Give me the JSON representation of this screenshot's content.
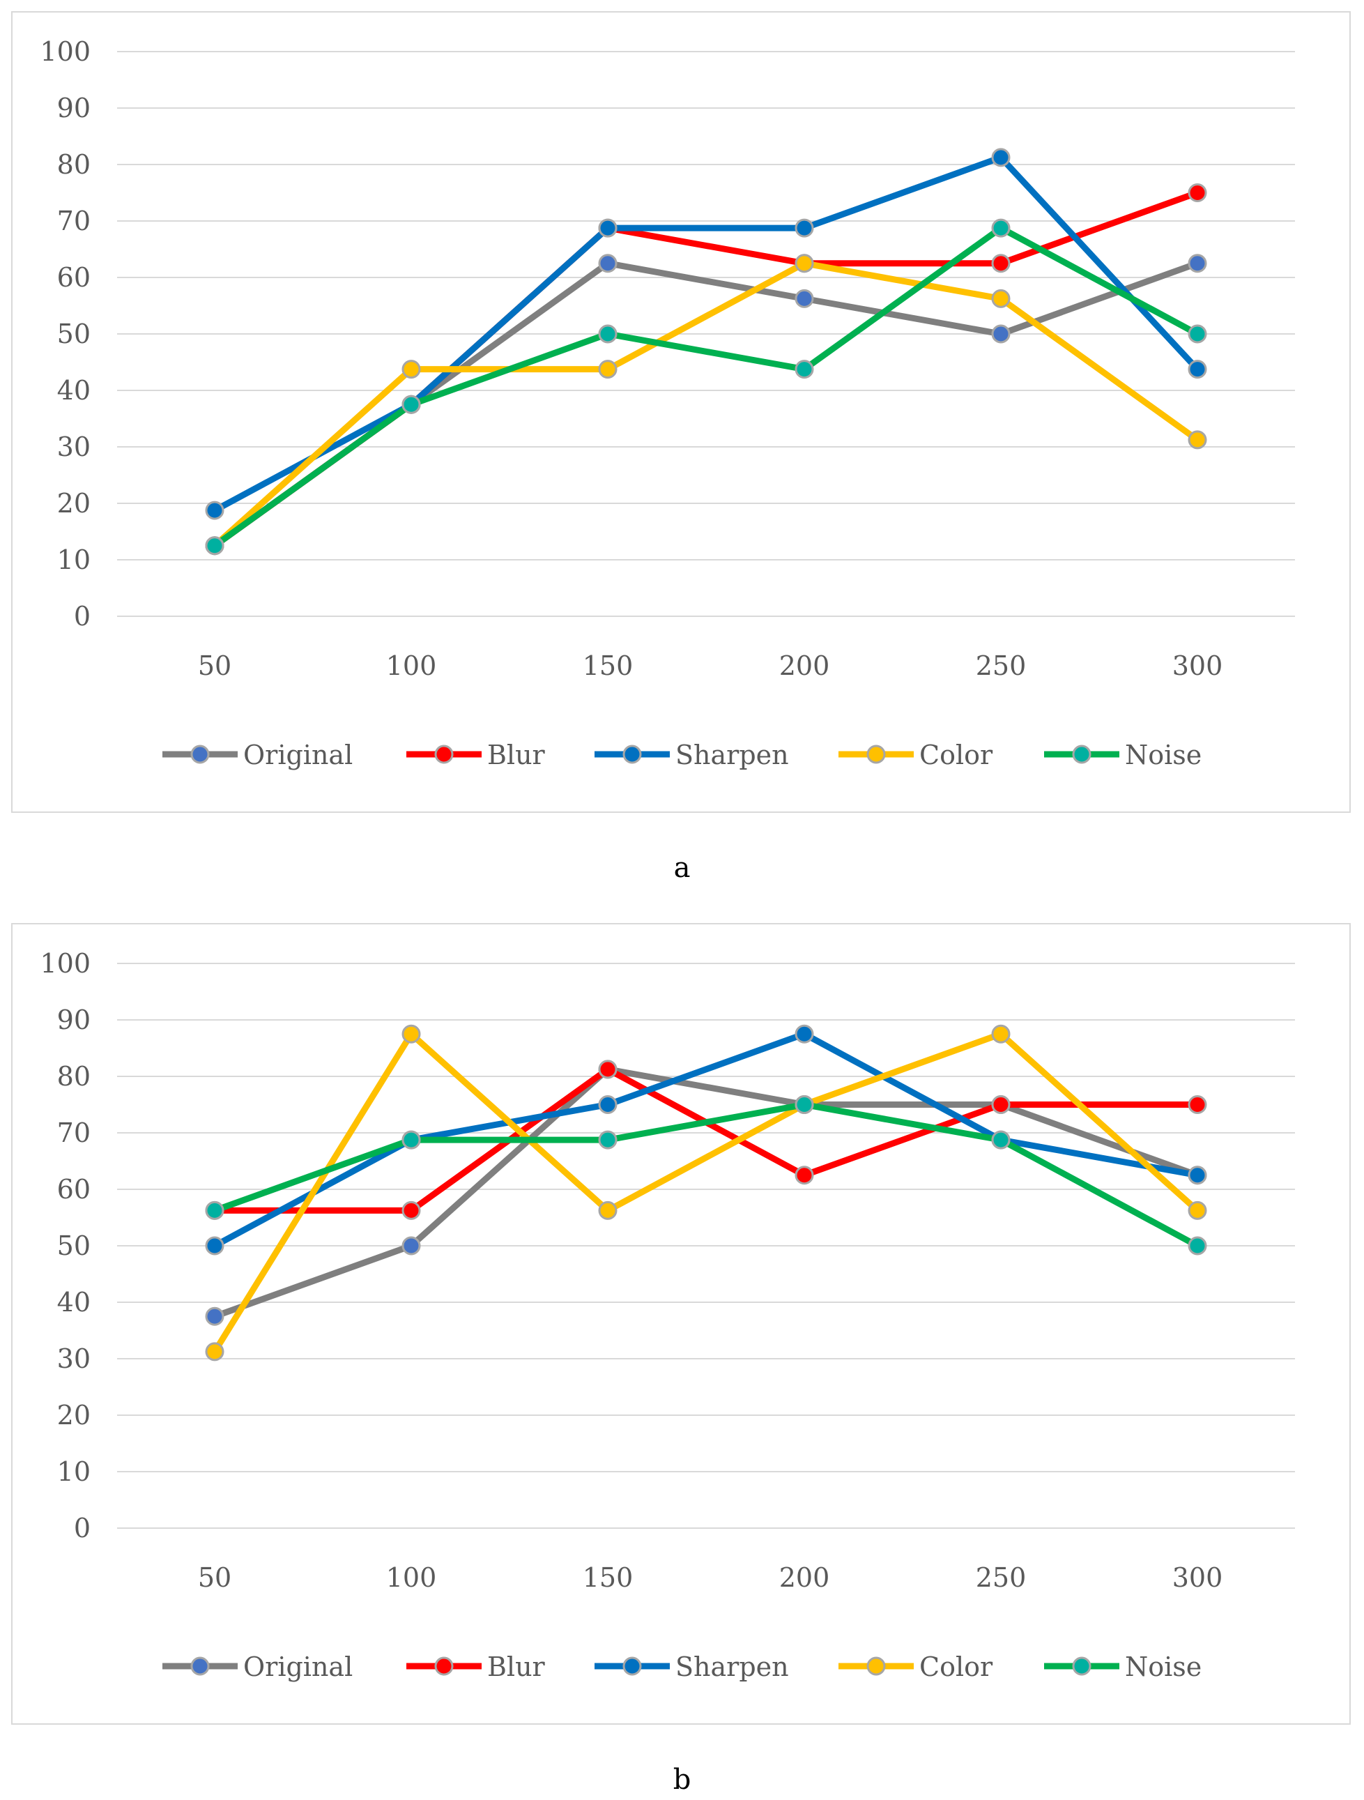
{
  "chart_data": [
    {
      "type": "line",
      "title": "",
      "xlabel": "",
      "ylabel": "",
      "categories": [
        "50",
        "100",
        "150",
        "200",
        "250",
        "300"
      ],
      "ylim": [
        0,
        100
      ],
      "yticks": [
        0,
        10,
        20,
        30,
        40,
        50,
        60,
        70,
        80,
        90,
        100
      ],
      "grid": true,
      "legend_position": "bottom",
      "caption": "a",
      "series": [
        {
          "name": "Original",
          "color": "#7f7f7f",
          "marker_color": "#4472c4",
          "values": [
            12.5,
            37.5,
            62.5,
            56.25,
            50,
            62.5
          ]
        },
        {
          "name": "Blur",
          "color": "#ff0000",
          "marker_color": "#ff0000",
          "values": [
            12.5,
            37.5,
            68.75,
            62.5,
            62.5,
            75
          ]
        },
        {
          "name": "Sharpen",
          "color": "#0070c0",
          "marker_color": "#0070c0",
          "values": [
            18.75,
            37.5,
            68.75,
            68.75,
            81.25,
            43.75
          ]
        },
        {
          "name": "Color",
          "color": "#ffc000",
          "marker_color": "#ffc000",
          "values": [
            12.5,
            43.75,
            43.75,
            62.5,
            56.25,
            31.25
          ]
        },
        {
          "name": "Noise",
          "color": "#00b050",
          "marker_color": "#00b0a0",
          "values": [
            12.5,
            37.5,
            50,
            43.75,
            68.75,
            50
          ]
        }
      ]
    },
    {
      "type": "line",
      "title": "",
      "xlabel": "",
      "ylabel": "",
      "categories": [
        "50",
        "100",
        "150",
        "200",
        "250",
        "300"
      ],
      "ylim": [
        0,
        100
      ],
      "yticks": [
        0,
        10,
        20,
        30,
        40,
        50,
        60,
        70,
        80,
        90,
        100
      ],
      "grid": true,
      "legend_position": "bottom",
      "caption": "b",
      "series": [
        {
          "name": "Original",
          "color": "#7f7f7f",
          "marker_color": "#4472c4",
          "values": [
            37.5,
            50,
            81.25,
            75,
            75,
            62.5
          ]
        },
        {
          "name": "Blur",
          "color": "#ff0000",
          "marker_color": "#ff0000",
          "values": [
            56.25,
            56.25,
            81.25,
            62.5,
            75,
            75
          ]
        },
        {
          "name": "Sharpen",
          "color": "#0070c0",
          "marker_color": "#0070c0",
          "values": [
            50,
            68.75,
            75,
            87.5,
            68.75,
            62.5
          ]
        },
        {
          "name": "Color",
          "color": "#ffc000",
          "marker_color": "#ffc000",
          "values": [
            31.25,
            87.5,
            56.25,
            75,
            87.5,
            56.25
          ]
        },
        {
          "name": "Noise",
          "color": "#00b050",
          "marker_color": "#00b0a0",
          "values": [
            56.25,
            68.75,
            68.75,
            75,
            68.75,
            50
          ]
        }
      ]
    }
  ]
}
